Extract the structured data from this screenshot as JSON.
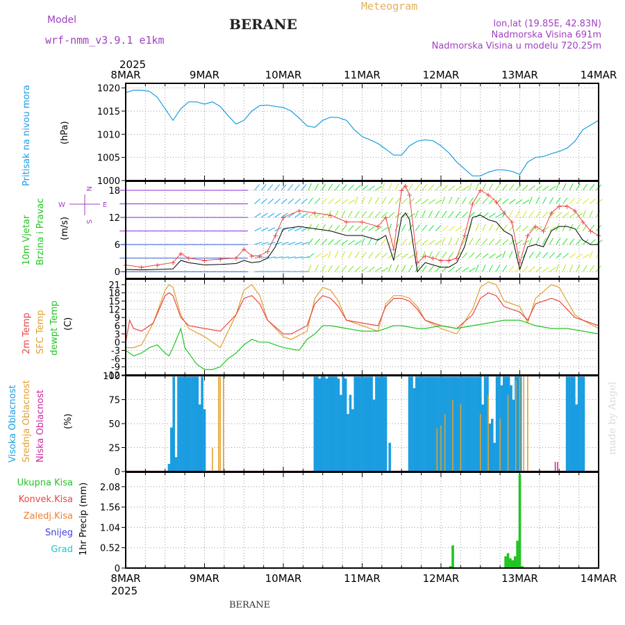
{
  "header": {
    "model_label": "Model",
    "model_name": "wrf-nmm_v3.9.1 e1km",
    "station": "BERANE",
    "meteogram": "Meteogram",
    "coords": "lon,lat (19.85E, 42.83N)",
    "elevation": "Nadmorska Visina 691m",
    "model_elevation": "Nadmorska Visina u modelu 720.25m"
  },
  "footer": {
    "station": "BERANE",
    "credit": "made by Angel"
  },
  "time_axis": {
    "year": "2025",
    "ticks": [
      "8MAR",
      "9MAR",
      "10MAR",
      "11MAR",
      "12MAR",
      "13MAR",
      "14MAR"
    ]
  },
  "colors": {
    "pressure": "#1a9de0",
    "temp2m": "#e84545",
    "sfc_temp": "#e0a030",
    "dewpt": "#22c422",
    "cloud_high": "#1a9de0",
    "cloud_mid": "#e0a030",
    "cloud_low": "#cc2aa0",
    "precip_total": "#22c422",
    "wind_speed": "#000000",
    "wind_gust": "#e84545",
    "wind_label_purple": "#a040c0"
  },
  "chart_data": [
    {
      "type": "line",
      "name": "pressure",
      "ylabel": "Pritisak na nivou mora",
      "unit": "(hPa)",
      "ylim": [
        1000,
        1021
      ],
      "yticks": [
        1000,
        1005,
        1010,
        1015,
        1020
      ],
      "grid": true,
      "x_days": [
        0,
        0.1,
        0.2,
        0.3,
        0.4,
        0.5,
        0.6,
        0.7,
        0.8,
        0.9,
        1.0,
        1.1,
        1.2,
        1.3,
        1.4,
        1.5,
        1.6,
        1.7,
        1.8,
        1.9,
        2.0,
        2.1,
        2.2,
        2.3,
        2.4,
        2.5,
        2.6,
        2.7,
        2.8,
        2.9,
        3.0,
        3.1,
        3.2,
        3.3,
        3.4,
        3.5,
        3.6,
        3.7,
        3.8,
        3.9,
        4.0,
        4.1,
        4.2,
        4.3,
        4.4,
        4.5,
        4.6,
        4.7,
        4.8,
        4.9,
        5.0,
        5.1,
        5.2,
        5.3,
        5.4,
        5.5,
        5.6,
        5.7,
        5.8,
        5.9,
        6.0
      ],
      "values": [
        1019.0,
        1019.5,
        1019.5,
        1019.3,
        1018.0,
        1015.5,
        1013.0,
        1015.5,
        1017.0,
        1017.0,
        1016.5,
        1017.0,
        1016.0,
        1014.0,
        1012.2,
        1013.0,
        1015.0,
        1016.2,
        1016.3,
        1016.0,
        1015.8,
        1015.0,
        1013.5,
        1011.8,
        1011.5,
        1013.0,
        1013.7,
        1013.6,
        1013.0,
        1011.0,
        1009.5,
        1008.8,
        1008.0,
        1006.8,
        1005.5,
        1005.5,
        1007.5,
        1008.5,
        1008.8,
        1008.6,
        1007.5,
        1006.0,
        1004.0,
        1002.5,
        1001.0,
        1001.0,
        1001.8,
        1002.3,
        1002.3,
        1002.0,
        1001.3,
        1004.0,
        1005.0,
        1005.2,
        1005.8,
        1006.3,
        1007.0,
        1008.5,
        1011.0,
        1012.0,
        1013.0
      ]
    },
    {
      "type": "line",
      "name": "wind",
      "ylabel": "10m Vjetar Brzina i Pravac",
      "unit": "(m/s)",
      "compass_labels": [
        "N",
        "W",
        "E",
        "S"
      ],
      "ylim": [
        -1.5,
        20
      ],
      "yticks": [
        0,
        6,
        12,
        18
      ],
      "grid": true,
      "series": [
        {
          "role": "speed",
          "x_days": [
            0,
            0.2,
            0.4,
            0.6,
            0.7,
            0.8,
            1.0,
            1.2,
            1.4,
            1.5,
            1.6,
            1.7,
            1.8,
            1.9,
            2.0,
            2.2,
            2.4,
            2.6,
            2.8,
            3.0,
            3.2,
            3.3,
            3.4,
            3.5,
            3.55,
            3.6,
            3.7,
            3.8,
            3.9,
            4.0,
            4.1,
            4.2,
            4.3,
            4.4,
            4.5,
            4.6,
            4.7,
            4.8,
            4.9,
            5.0,
            5.1,
            5.2,
            5.3,
            5.4,
            5.5,
            5.6,
            5.7,
            5.8,
            5.9,
            6.0
          ],
          "values": [
            0.5,
            0.4,
            0.5,
            0.6,
            2.5,
            2.0,
            1.5,
            1.6,
            1.8,
            2.5,
            2.0,
            2.2,
            3.0,
            5.5,
            9.5,
            10.0,
            9.5,
            9.0,
            8.0,
            8.0,
            7.0,
            8.0,
            2.5,
            12.0,
            13.0,
            11.5,
            0.0,
            2.0,
            1.5,
            1.0,
            1.0,
            2.0,
            5.5,
            12.0,
            12.5,
            11.5,
            11.0,
            9.0,
            8.0,
            0.5,
            5.5,
            6.0,
            5.5,
            9.0,
            10.0,
            10.0,
            9.5,
            7.0,
            6.0,
            6.0
          ]
        },
        {
          "role": "gust",
          "x_days": [
            0,
            0.2,
            0.4,
            0.6,
            0.7,
            0.8,
            1.0,
            1.2,
            1.4,
            1.5,
            1.6,
            1.7,
            1.8,
            1.9,
            2.0,
            2.2,
            2.4,
            2.6,
            2.8,
            3.0,
            3.2,
            3.3,
            3.4,
            3.5,
            3.55,
            3.6,
            3.7,
            3.8,
            3.9,
            4.0,
            4.1,
            4.2,
            4.3,
            4.4,
            4.5,
            4.6,
            4.7,
            4.8,
            4.9,
            5.0,
            5.1,
            5.2,
            5.3,
            5.4,
            5.5,
            5.6,
            5.7,
            5.8,
            5.9,
            6.0
          ],
          "values": [
            1.5,
            1.0,
            1.5,
            2.0,
            4.0,
            3.0,
            2.5,
            2.8,
            3.0,
            5.0,
            3.5,
            3.5,
            4.5,
            8.0,
            12.0,
            13.5,
            13.0,
            12.5,
            11.0,
            11.0,
            10.0,
            12.0,
            5.0,
            18.0,
            19.0,
            17.0,
            2.0,
            3.5,
            3.0,
            2.5,
            2.5,
            3.0,
            8.0,
            15.0,
            18.0,
            17.0,
            15.5,
            13.0,
            11.0,
            2.0,
            8.0,
            10.0,
            9.0,
            13.0,
            14.5,
            14.5,
            13.5,
            11.0,
            9.0,
            8.0
          ]
        }
      ]
    },
    {
      "type": "line",
      "name": "temperature",
      "ylabels": [
        "2m Temp",
        "SFC Temp",
        "dewpt Temp"
      ],
      "unit": "(C)",
      "ylim": [
        -12,
        23
      ],
      "yticks": [
        -12,
        -9,
        -6,
        -3,
        0,
        3,
        6,
        9,
        12,
        15,
        18,
        21
      ],
      "grid": true,
      "series": [
        {
          "role": "temp2m",
          "x_days": [
            0,
            0.05,
            0.1,
            0.2,
            0.35,
            0.5,
            0.55,
            0.6,
            0.7,
            0.8,
            1.0,
            1.2,
            1.4,
            1.5,
            1.6,
            1.7,
            1.8,
            2.0,
            2.1,
            2.3,
            2.4,
            2.5,
            2.6,
            2.7,
            2.8,
            3.0,
            3.2,
            3.3,
            3.4,
            3.5,
            3.6,
            3.7,
            3.8,
            4.0,
            4.2,
            4.4,
            4.5,
            4.6,
            4.7,
            4.8,
            4.9,
            5.0,
            5.1,
            5.2,
            5.4,
            5.5,
            5.6,
            5.7,
            5.8,
            6.0
          ],
          "values": [
            0,
            8,
            5,
            4,
            7,
            17,
            18,
            17,
            9,
            6,
            5,
            4,
            10,
            16,
            17,
            14,
            8,
            3,
            3,
            6,
            14,
            17,
            16,
            13,
            8,
            7,
            6,
            13,
            16,
            16,
            15,
            12,
            8,
            6,
            5,
            10,
            16,
            18,
            17,
            13,
            12,
            11,
            8,
            14,
            16,
            15,
            12,
            9,
            8,
            6
          ]
        },
        {
          "role": "sfc_temp",
          "x_days": [
            0,
            0.1,
            0.2,
            0.35,
            0.5,
            0.55,
            0.6,
            0.7,
            0.8,
            1.0,
            1.2,
            1.4,
            1.5,
            1.6,
            1.7,
            1.8,
            2.0,
            2.1,
            2.3,
            2.4,
            2.5,
            2.6,
            2.7,
            2.8,
            3.0,
            3.2,
            3.3,
            3.4,
            3.5,
            3.6,
            3.7,
            3.8,
            4.0,
            4.2,
            4.4,
            4.5,
            4.6,
            4.7,
            4.8,
            4.9,
            5.0,
            5.1,
            5.2,
            5.4,
            5.5,
            5.6,
            5.7,
            5.8,
            6.0
          ],
          "values": [
            -2,
            -2,
            -1,
            7,
            19,
            21,
            20,
            10,
            5,
            2,
            -2,
            10,
            19,
            21,
            17,
            8,
            2,
            1,
            4,
            16,
            20,
            19,
            15,
            8,
            6,
            4,
            14,
            17,
            17,
            16,
            13,
            8,
            5,
            3,
            12,
            20,
            22,
            21,
            15,
            14,
            13,
            7,
            16,
            21,
            20,
            15,
            10,
            8,
            5
          ]
        },
        {
          "role": "dewpt",
          "x_days": [
            0,
            0.1,
            0.2,
            0.3,
            0.4,
            0.5,
            0.55,
            0.6,
            0.7,
            0.75,
            0.8,
            0.9,
            1.0,
            1.1,
            1.2,
            1.3,
            1.4,
            1.5,
            1.6,
            1.7,
            1.8,
            2.0,
            2.2,
            2.3,
            2.4,
            2.5,
            2.6,
            2.8,
            3.0,
            3.2,
            3.4,
            3.5,
            3.7,
            3.8,
            4.0,
            4.2,
            4.4,
            4.6,
            4.8,
            5.0,
            5.2,
            5.4,
            5.6,
            5.8,
            6.0
          ],
          "values": [
            -3,
            -5,
            -4,
            -2,
            -1,
            -4,
            -5,
            -2,
            5,
            -2,
            -4,
            -8,
            -10,
            -10,
            -9,
            -6,
            -4,
            -1,
            1,
            0,
            0,
            -2,
            -3,
            1,
            3,
            6,
            6,
            5,
            4,
            4,
            6,
            6,
            5,
            5,
            6,
            5,
            6,
            7,
            8,
            8,
            6,
            5,
            5,
            4,
            3
          ]
        }
      ]
    },
    {
      "type": "bar",
      "name": "cloud_cover",
      "ylabels": [
        "Visoka Oblacnost",
        "Srednja Oblacnost",
        "Niska Oblacnost"
      ],
      "unit": "(%)",
      "ylim": [
        0,
        100
      ],
      "yticks": [
        0,
        25,
        50,
        75,
        100
      ],
      "grid": true,
      "series": [
        {
          "role": "high",
          "x_days": [
            0.55,
            0.58,
            0.61,
            0.64,
            0.67,
            0.7,
            0.73,
            0.76,
            0.79,
            0.82,
            0.85,
            0.88,
            0.91,
            0.94,
            0.97,
            1.0,
            2.4,
            2.43,
            2.46,
            2.49,
            2.52,
            2.55,
            2.58,
            2.61,
            2.64,
            2.67,
            2.7,
            2.73,
            2.76,
            2.79,
            2.82,
            2.85,
            2.88,
            2.91,
            2.94,
            2.97,
            3.0,
            3.03,
            3.06,
            3.09,
            3.12,
            3.15,
            3.18,
            3.21,
            3.24,
            3.27,
            3.3,
            3.35,
            3.6,
            3.63,
            3.66,
            3.69,
            3.72,
            3.75,
            3.78,
            3.81,
            3.84,
            3.87,
            3.9,
            3.93,
            3.96,
            3.99,
            4.02,
            4.05,
            4.08,
            4.11,
            4.14,
            4.17,
            4.2,
            4.23,
            4.26,
            4.29,
            4.32,
            4.35,
            4.38,
            4.41,
            4.44,
            4.47,
            4.5,
            4.53,
            4.56,
            4.59,
            4.62,
            4.65,
            4.68,
            4.71,
            4.74,
            4.77,
            4.8,
            4.83,
            4.86,
            4.89,
            4.92,
            4.95,
            4.98,
            5.01,
            5.6,
            5.63,
            5.66,
            5.69,
            5.72,
            5.75,
            5.78,
            5.81
          ],
          "values": [
            8,
            46,
            99,
            15,
            99,
            99,
            99,
            99,
            99,
            99,
            99,
            99,
            99,
            70,
            99,
            65,
            99,
            99,
            97,
            99,
            99,
            97,
            99,
            99,
            99,
            99,
            97,
            80,
            99,
            97,
            60,
            80,
            65,
            99,
            99,
            99,
            99,
            99,
            99,
            99,
            99,
            75,
            99,
            99,
            99,
            99,
            99,
            30,
            99,
            99,
            87,
            99,
            99,
            99,
            99,
            99,
            99,
            99,
            99,
            99,
            99,
            99,
            99,
            99,
            99,
            99,
            99,
            99,
            99,
            99,
            99,
            99,
            99,
            99,
            99,
            99,
            99,
            99,
            99,
            70,
            99,
            99,
            50,
            55,
            30,
            99,
            99,
            90,
            99,
            99,
            99,
            90,
            75,
            99,
            99,
            99,
            99,
            99,
            99,
            99,
            70,
            99,
            99,
            99
          ]
        },
        {
          "role": "mid",
          "x_days": [
            1.1,
            1.18,
            1.2,
            1.24,
            3.95,
            4.0,
            4.05,
            4.15,
            4.25,
            4.5,
            4.6,
            4.75,
            4.85,
            4.95,
            5.0,
            5.05,
            5.1
          ],
          "values": [
            25,
            99,
            99,
            99,
            45,
            48,
            60,
            75,
            70,
            60,
            80,
            55,
            80,
            95,
            99,
            99,
            99
          ]
        },
        {
          "role": "low",
          "x_days": [
            5.45,
            5.48
          ],
          "values": [
            10,
            10
          ]
        }
      ]
    },
    {
      "type": "bar",
      "name": "precipitation",
      "ylabel": "1hr Precip",
      "unit": "(mm)",
      "legend": [
        "Ukupna Kisa",
        "Konvek.Kisa",
        "Zaledj.Kisa",
        "Snijeg",
        "Grad"
      ],
      "ylim": [
        0,
        2.45
      ],
      "yticks": [
        0,
        0.52,
        1.04,
        1.56,
        2.08
      ],
      "grid": true,
      "x_days": [
        4.12,
        4.15,
        4.82,
        4.85,
        4.88,
        4.91,
        4.94,
        4.97,
        5.0,
        5.03
      ],
      "values": [
        0.05,
        0.58,
        0.3,
        0.38,
        0.25,
        0.2,
        0.3,
        0.7,
        2.4,
        0.05
      ]
    }
  ]
}
